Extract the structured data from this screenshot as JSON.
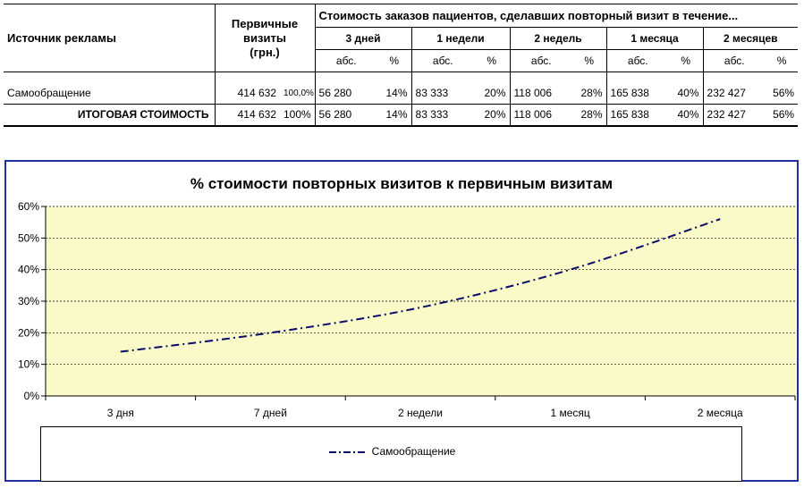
{
  "table": {
    "h_source": "Источник рекламы",
    "h_primary": [
      "Первичные",
      "визиты",
      "(грн.)"
    ],
    "h_repeat": "Стоимость заказов пациентов, сделавших повторный визит в течение...",
    "periods": [
      "3 дней",
      "1 недели",
      "2 недель",
      "1 месяца",
      "2 месяцев"
    ],
    "sub_abs": "абс.",
    "sub_pct": "%",
    "rows": [
      {
        "label": "Самообращение",
        "primary": "414 632",
        "primary_pct": "100,0%",
        "cells": [
          [
            "56 280",
            "14%"
          ],
          [
            "83 333",
            "20%"
          ],
          [
            "118 006",
            "28%"
          ],
          [
            "165 838",
            "40%"
          ],
          [
            "232 427",
            "56%"
          ]
        ]
      },
      {
        "label": "ИТОГОВАЯ СТОИМОСТЬ",
        "primary": "414 632",
        "primary_pct": "100%",
        "cells": [
          [
            "56 280",
            "14%"
          ],
          [
            "83 333",
            "20%"
          ],
          [
            "118 006",
            "28%"
          ],
          [
            "165 838",
            "40%"
          ],
          [
            "232 427",
            "56%"
          ]
        ]
      }
    ]
  },
  "chart_data": {
    "type": "line",
    "title": "% стоимости повторных визитов к первичным визитам",
    "categories": [
      "3 дня",
      "7 дней",
      "2 недели",
      "1 месяц",
      "2 месяца"
    ],
    "series": [
      {
        "name": "Самообращение",
        "values": [
          0.14,
          0.2,
          0.28,
          0.4,
          0.56
        ]
      }
    ],
    "yticks": [
      "0%",
      "10%",
      "20%",
      "30%",
      "40%",
      "50%",
      "60%"
    ],
    "ylim": [
      0,
      0.6
    ],
    "grid": true,
    "legend": "bottom",
    "colors": {
      "plot_bg": "#fafac8",
      "line": "#0b0b6b",
      "frame": "#1f2f9f",
      "grid": "#000000"
    }
  }
}
